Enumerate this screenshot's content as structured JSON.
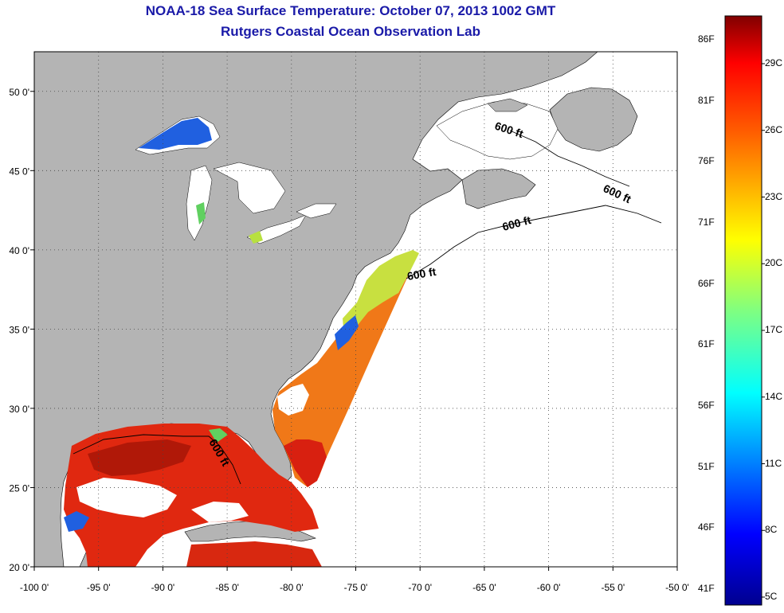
{
  "title": "NOAA-18 Sea Surface Temperature:  October 07, 2013 1002 GMT",
  "subtitle": "Rutgers Coastal Ocean Observation Lab",
  "axes": {
    "x_ticks": [
      "-100 0'",
      "-95 0'",
      "-90 0'",
      "-85 0'",
      "-80 0'",
      "-75 0'",
      "-70 0'",
      "-65 0'",
      "-60 0'",
      "-55 0'",
      "-50 0'"
    ],
    "y_ticks": [
      "50 0'",
      "45 0'",
      "40 0'",
      "35 0'",
      "30 0'",
      "25 0'",
      "20 0'"
    ],
    "x_range": [
      -100,
      -50
    ],
    "y_range": [
      20,
      52.5
    ],
    "grid": true
  },
  "contours": {
    "label": "600 ft",
    "label_count": 5
  },
  "colorbar": {
    "fahrenheit": [
      "86F",
      "81F",
      "76F",
      "71F",
      "66F",
      "61F",
      "56F",
      "51F",
      "46F",
      "41F"
    ],
    "celsius": [
      "29C",
      "26C",
      "23C",
      "20C",
      "17C",
      "14C",
      "11C",
      "8C",
      "5C"
    ],
    "colors": [
      "#800000",
      "#ff0000",
      "#ff8000",
      "#ffff00",
      "#80ff80",
      "#00ffff",
      "#0080ff",
      "#0000ff",
      "#00008f"
    ]
  },
  "map_colors": {
    "land": "#b4b4b4",
    "no_data": "#ffffff",
    "warm_sst": "#e83010",
    "mid_sst": "#f07818",
    "cool_sst": "#c8e040",
    "cold_sst": "#2060e0"
  }
}
